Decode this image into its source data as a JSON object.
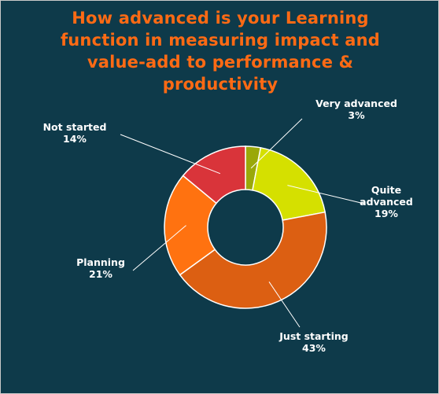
{
  "chart_data": {
    "type": "pie",
    "variant": "donut",
    "title_lines": [
      "How advanced is your Learning",
      "function in measuring impact and",
      "value-add to performance &",
      "productivity"
    ],
    "categories": [
      "Very advanced",
      "Quite advanced",
      "Just starting",
      "Planning",
      "Not started"
    ],
    "values": [
      3,
      19,
      43,
      21,
      14
    ],
    "data_labels": [
      [
        "Very advanced",
        "3%"
      ],
      [
        "Quite",
        "advanced",
        "19%"
      ],
      [
        "Just starting",
        "43%"
      ],
      [
        "Planning",
        "21%"
      ],
      [
        "Not started",
        "14%"
      ]
    ],
    "colors": [
      "#9aa80a",
      "#d5e000",
      "#dc5f12",
      "#ff7210",
      "#d9343a"
    ],
    "background": "#0e3a4a",
    "title_color": "#ff6a14",
    "legend": "none"
  }
}
